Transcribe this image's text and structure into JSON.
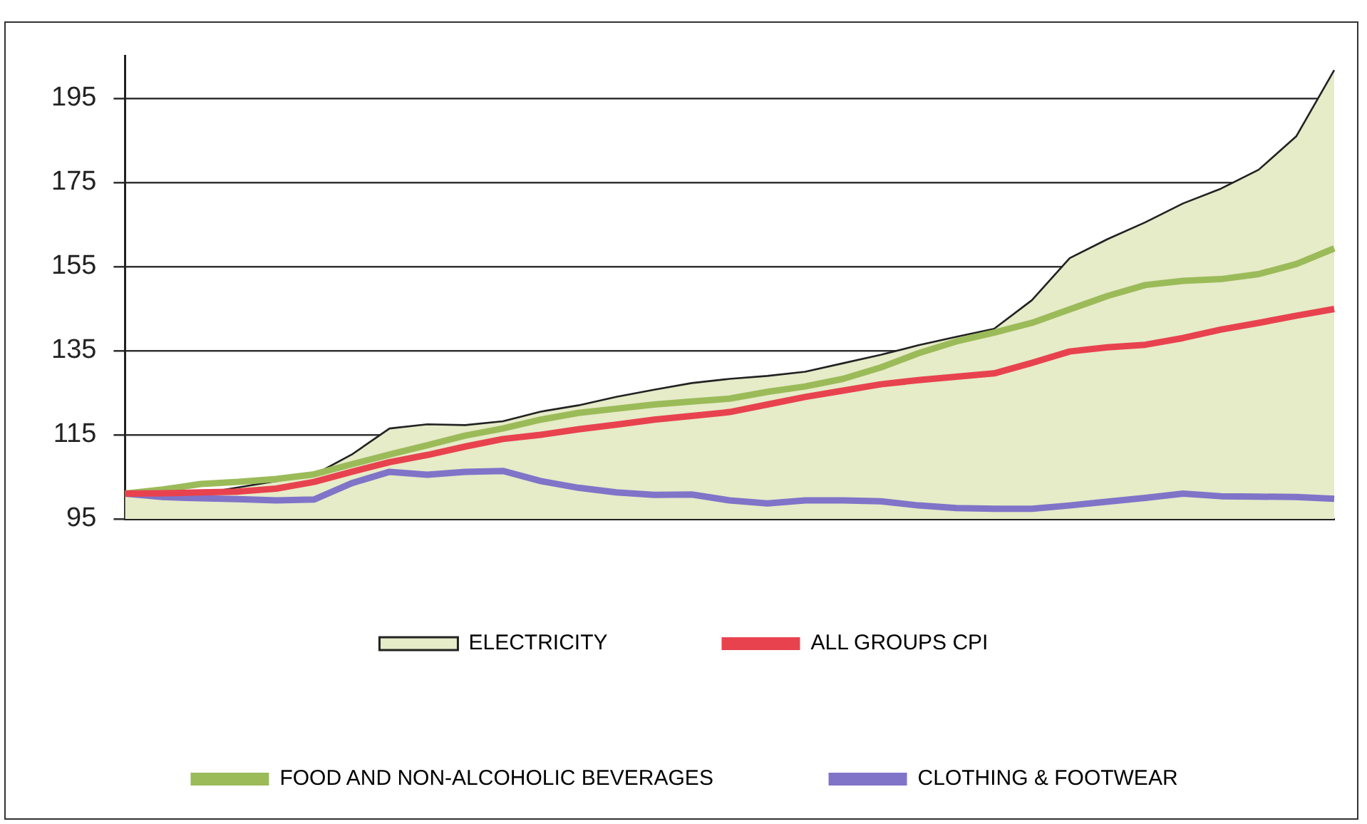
{
  "chart_data": {
    "type": "line",
    "categories": [
      null,
      null,
      null,
      null,
      null,
      null,
      null,
      null,
      null,
      null,
      null,
      null,
      null,
      null,
      null,
      null,
      null,
      null,
      null,
      null,
      null,
      null,
      null,
      null,
      null,
      null,
      null,
      null,
      null,
      null,
      null,
      null,
      null
    ],
    "series": [
      {
        "name": "ELECTRICITY",
        "type": "area",
        "color": "#e6ebc8",
        "values": [
          101,
          100,
          101,
          102.5,
          104,
          105.5,
          110.3,
          116.5,
          117.5,
          117.3,
          118.2,
          120.5,
          122,
          124,
          125.7,
          127.3,
          128.3,
          129,
          130,
          132,
          134,
          136.3,
          138.3,
          140.2,
          147,
          157,
          161.5,
          165.5,
          170,
          173.5,
          178,
          186,
          201.7
        ]
      },
      {
        "name": "ALL GROUPS CPI",
        "color": "#e8424f",
        "values": [
          101,
          101.1,
          101.3,
          101.5,
          102.2,
          103.8,
          106.2,
          108.5,
          110.2,
          112.2,
          114,
          115,
          116.3,
          117.4,
          118.6,
          119.5,
          120.4,
          122.2,
          124,
          125.5,
          127,
          128,
          128.8,
          129.6,
          132.1,
          134.8,
          135.8,
          136.4,
          138,
          140,
          141.6,
          143.3,
          144.9
        ]
      },
      {
        "name": "FOOD AND NON-ALCOHOLIC BEVERAGES",
        "color": "#9bbb59",
        "values": [
          101,
          102,
          103.3,
          103.8,
          104.5,
          105.6,
          108,
          110.3,
          112.5,
          114.8,
          116.5,
          118.6,
          120.2,
          121.2,
          122.2,
          122.9,
          123.6,
          125.2,
          126.5,
          128.3,
          131,
          134.4,
          137.2,
          139.3,
          141.6,
          144.8,
          148,
          150.6,
          151.6,
          152,
          153.2,
          155.6,
          159.3
        ]
      },
      {
        "name": "CLOTHING & FOOTWEAR",
        "color": "#7f74c8",
        "values": [
          101,
          100.2,
          99.9,
          99.7,
          99.4,
          99.6,
          103.5,
          106.2,
          105.5,
          106.2,
          106.4,
          104,
          102.4,
          101.3,
          100.7,
          100.8,
          99.4,
          98.7,
          99.4,
          99.4,
          99.2,
          98.2,
          97.6,
          97.4,
          97.4,
          98.2,
          99.1,
          100,
          101,
          100.4,
          100.3,
          100.2,
          99.8
        ]
      }
    ],
    "ylim": [
      95,
      205
    ],
    "yticks": [
      95,
      115,
      135,
      155,
      175,
      195
    ],
    "grid": "y",
    "legend": "bottom",
    "tick_labels": "y",
    "marker": "none",
    "line_style": "solid"
  }
}
